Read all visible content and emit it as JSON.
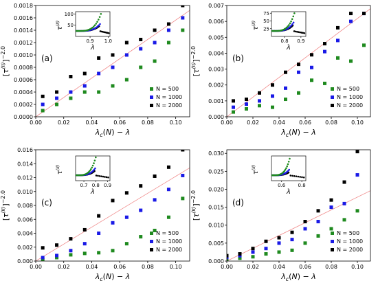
{
  "colors": {
    "n500": "#1f8a1f",
    "n1000": "#1a1ae6",
    "n2000": "#000000",
    "fit": "#f08a8a"
  },
  "chart_data": [
    {
      "type": "scatter",
      "panel_label": "(a)",
      "xlabel": "λc(N) − λ",
      "ylabel": "[τ(II)]−2.0",
      "xlim": [
        0,
        0.11
      ],
      "ylim": [
        0,
        0.0018
      ],
      "xticks": [
        0.0,
        0.02,
        0.04,
        0.06,
        0.08,
        0.1
      ],
      "xtick_labels": [
        "0.00",
        "0.02",
        "0.04",
        "0.06",
        "0.08",
        "0.10"
      ],
      "yticks": [
        0,
        0.0002,
        0.0004,
        0.0006,
        0.0008,
        0.001,
        0.0012,
        0.0014,
        0.0016,
        0.0018
      ],
      "ytick_labels": [
        "0.0000",
        "0.0002",
        "0.0004",
        "0.0006",
        "0.0008",
        "0.0010",
        "0.0012",
        "0.0014",
        "0.0016",
        "0.0018"
      ],
      "fit": [
        [
          0.0,
          0.0
        ],
        [
          0.11,
          0.00172
        ]
      ],
      "legend_position": "lower-right",
      "series": [
        {
          "name": "N = 500",
          "color": "n500",
          "points": [
            [
              0.005,
              0.0001
            ],
            [
              0.015,
              0.0002
            ],
            [
              0.025,
              0.0003
            ],
            [
              0.035,
              0.0004
            ],
            [
              0.045,
              0.0004
            ],
            [
              0.055,
              0.0005
            ],
            [
              0.065,
              0.0006
            ],
            [
              0.075,
              0.0008
            ],
            [
              0.085,
              0.0009
            ],
            [
              0.095,
              0.0012
            ],
            [
              0.105,
              0.0014
            ]
          ]
        },
        {
          "name": "N = 1000",
          "color": "n1000",
          "points": [
            [
              0.005,
              0.0002
            ],
            [
              0.015,
              0.0003
            ],
            [
              0.025,
              0.0004
            ],
            [
              0.035,
              0.0005
            ],
            [
              0.045,
              0.0007
            ],
            [
              0.055,
              0.0008
            ],
            [
              0.065,
              0.001
            ],
            [
              0.075,
              0.0011
            ],
            [
              0.085,
              0.0012
            ],
            [
              0.095,
              0.0014
            ],
            [
              0.105,
              0.0016
            ]
          ]
        },
        {
          "name": "N = 2000",
          "color": "n2000",
          "points": [
            [
              0.005,
              0.00033
            ],
            [
              0.015,
              0.0004
            ],
            [
              0.025,
              0.00065
            ],
            [
              0.035,
              0.0007
            ],
            [
              0.045,
              0.00095
            ],
            [
              0.055,
              0.001
            ],
            [
              0.065,
              0.0012
            ],
            [
              0.075,
              0.00125
            ],
            [
              0.085,
              0.0014
            ],
            [
              0.095,
              0.0015
            ],
            [
              0.105,
              0.0018
            ]
          ]
        }
      ],
      "inset": {
        "xlabel": "λ",
        "ylabel": "τ(II)",
        "xlim": [
          0.82,
          1.01
        ],
        "ylim": [
          0,
          110
        ],
        "xticks": [
          0.9,
          1.0
        ],
        "xtick_labels": [
          "0.9",
          "1.0"
        ],
        "yticks": [
          50,
          100
        ],
        "ytick_labels": [
          "50",
          "100"
        ],
        "peaks": [
          {
            "color": "n500",
            "xc": 0.96,
            "peak": 100
          },
          {
            "color": "n1000",
            "xc": 0.955,
            "peak": 55
          },
          {
            "color": "n2000",
            "xc": 0.95,
            "peak": 45
          }
        ]
      }
    },
    {
      "type": "scatter",
      "panel_label": "(b)",
      "xlabel": "λc(N) − λ",
      "ylabel": "[τ(II)]−2.0",
      "xlim": [
        0,
        0.11
      ],
      "ylim": [
        0,
        0.007
      ],
      "xticks": [
        0.0,
        0.02,
        0.04,
        0.06,
        0.08,
        0.1
      ],
      "xtick_labels": [
        "0.00",
        "0.02",
        "0.04",
        "0.06",
        "0.08",
        "0.10"
      ],
      "yticks": [
        0,
        0.001,
        0.002,
        0.003,
        0.004,
        0.005,
        0.006,
        0.007
      ],
      "ytick_labels": [
        "0.000",
        "0.001",
        "0.002",
        "0.003",
        "0.004",
        "0.005",
        "0.006",
        "0.007"
      ],
      "fit": [
        [
          0.0,
          0.0
        ],
        [
          0.11,
          0.0068
        ]
      ],
      "legend_position": "lower-right",
      "series": [
        {
          "name": "N = 500",
          "color": "n500",
          "points": [
            [
              0.005,
              0.0003
            ],
            [
              0.015,
              0.0005
            ],
            [
              0.025,
              0.0007
            ],
            [
              0.035,
              0.0006
            ],
            [
              0.045,
              0.0011
            ],
            [
              0.055,
              0.0015
            ],
            [
              0.065,
              0.0023
            ],
            [
              0.075,
              0.0021
            ],
            [
              0.085,
              0.0037
            ],
            [
              0.095,
              0.0035
            ],
            [
              0.105,
              0.0045
            ]
          ]
        },
        {
          "name": "N = 1000",
          "color": "n1000",
          "points": [
            [
              0.005,
              0.0006
            ],
            [
              0.015,
              0.0008
            ],
            [
              0.025,
              0.001
            ],
            [
              0.035,
              0.0013
            ],
            [
              0.045,
              0.0018
            ],
            [
              0.055,
              0.0028
            ],
            [
              0.065,
              0.0031
            ],
            [
              0.075,
              0.0041
            ],
            [
              0.085,
              0.0048
            ],
            [
              0.095,
              0.006
            ],
            [
              0.105,
              0.0065
            ]
          ]
        },
        {
          "name": "N = 2000",
          "color": "n2000",
          "points": [
            [
              0.005,
              0.001
            ],
            [
              0.015,
              0.0011
            ],
            [
              0.025,
              0.0015
            ],
            [
              0.035,
              0.002
            ],
            [
              0.045,
              0.0028
            ],
            [
              0.055,
              0.0033
            ],
            [
              0.065,
              0.0039
            ],
            [
              0.075,
              0.0046
            ],
            [
              0.085,
              0.0056
            ],
            [
              0.095,
              0.0065
            ],
            [
              0.105,
              0.0065
            ]
          ]
        }
      ],
      "inset": {
        "xlabel": "λ",
        "ylabel": "τ(II)",
        "xlim": [
          0.72,
          0.93
        ],
        "ylim": [
          0,
          80
        ],
        "xticks": [
          0.8,
          0.9
        ],
        "xtick_labels": [
          "0.8",
          "0.9"
        ],
        "yticks": [
          25,
          50,
          75
        ],
        "ytick_labels": [
          "25",
          "50",
          "75"
        ],
        "peaks": [
          {
            "color": "n500",
            "xc": 0.86,
            "peak": 75
          },
          {
            "color": "n1000",
            "xc": 0.855,
            "peak": 45
          },
          {
            "color": "n2000",
            "xc": 0.85,
            "peak": 35
          }
        ]
      }
    },
    {
      "type": "scatter",
      "panel_label": "(c)",
      "xlabel": "λc(N) − λ",
      "ylabel": "[τ(II)]−2.0",
      "xlim": [
        0,
        0.11
      ],
      "ylim": [
        0,
        0.016
      ],
      "xticks": [
        0.0,
        0.02,
        0.04,
        0.06,
        0.08,
        0.1
      ],
      "xtick_labels": [
        "0.00",
        "0.02",
        "0.04",
        "0.06",
        "0.08",
        "0.10"
      ],
      "yticks": [
        0,
        0.002,
        0.004,
        0.006,
        0.008,
        0.01,
        0.012,
        0.014,
        0.016
      ],
      "ytick_labels": [
        "0.000",
        "0.002",
        "0.004",
        "0.006",
        "0.008",
        "0.010",
        "0.012",
        "0.014",
        "0.016"
      ],
      "fit": [
        [
          0.0,
          0.0
        ],
        [
          0.11,
          0.0134
        ]
      ],
      "legend_position": "lower-right",
      "series": [
        {
          "name": "N = 500",
          "color": "n500",
          "points": [
            [
              0.005,
              0.0002
            ],
            [
              0.015,
              0.0005
            ],
            [
              0.025,
              0.0009
            ],
            [
              0.035,
              0.0011
            ],
            [
              0.045,
              0.0012
            ],
            [
              0.055,
              0.0015
            ],
            [
              0.065,
              0.0025
            ],
            [
              0.075,
              0.0035
            ],
            [
              0.085,
              0.0044
            ],
            [
              0.095,
              0.0063
            ],
            [
              0.105,
              0.009
            ]
          ]
        },
        {
          "name": "N = 1000",
          "color": "n1000",
          "points": [
            [
              0.005,
              0.0005
            ],
            [
              0.015,
              0.0008
            ],
            [
              0.025,
              0.0015
            ],
            [
              0.035,
              0.0025
            ],
            [
              0.045,
              0.004
            ],
            [
              0.055,
              0.0055
            ],
            [
              0.065,
              0.0063
            ],
            [
              0.075,
              0.0073
            ],
            [
              0.085,
              0.0088
            ],
            [
              0.095,
              0.0103
            ],
            [
              0.105,
              0.0123
            ]
          ]
        },
        {
          "name": "N = 2000",
          "color": "n2000",
          "points": [
            [
              0.005,
              0.0019
            ],
            [
              0.015,
              0.0023
            ],
            [
              0.025,
              0.0032
            ],
            [
              0.035,
              0.0045
            ],
            [
              0.045,
              0.0065
            ],
            [
              0.055,
              0.0087
            ],
            [
              0.065,
              0.0098
            ],
            [
              0.075,
              0.0108
            ],
            [
              0.085,
              0.0122
            ],
            [
              0.095,
              0.0135
            ],
            [
              0.105,
              0.016
            ]
          ]
        }
      ],
      "inset": {
        "xlabel": "λ",
        "ylabel": "τ(II)",
        "xlim": [
          0.63,
          0.92
        ],
        "ylim": [
          0,
          90
        ],
        "xticks": [
          0.7,
          0.8,
          0.9
        ],
        "xtick_labels": [
          "0.7",
          "0.8",
          "0.9"
        ],
        "yticks": [],
        "ytick_labels": [],
        "peaks": [
          {
            "color": "n500",
            "xc": 0.8,
            "peak": 85
          },
          {
            "color": "n1000",
            "xc": 0.795,
            "peak": 45
          },
          {
            "color": "n2000",
            "xc": 0.79,
            "peak": 35
          }
        ]
      }
    },
    {
      "type": "scatter",
      "panel_label": "(d)",
      "xlabel": "λc(N) − λ",
      "ylabel": "[τ(II)]−2.0",
      "xlim": [
        0,
        0.11
      ],
      "ylim": [
        0,
        0.031
      ],
      "xticks": [
        0.0,
        0.02,
        0.04,
        0.06,
        0.08,
        0.1
      ],
      "xtick_labels": [
        "0.00",
        "0.02",
        "0.04",
        "0.06",
        "0.08",
        "0.10"
      ],
      "yticks": [
        0,
        0.005,
        0.01,
        0.015,
        0.02,
        0.025,
        0.03
      ],
      "ytick_labels": [
        "0.000",
        "0.005",
        "0.010",
        "0.015",
        "0.020",
        "0.025",
        "0.030"
      ],
      "fit": [
        [
          0.0,
          0.0
        ],
        [
          0.11,
          0.0196
        ]
      ],
      "legend_position": "lower-right",
      "series": [
        {
          "name": "N = 500",
          "color": "n500",
          "points": [
            [
              0.0,
              0.0005
            ],
            [
              0.01,
              0.0008
            ],
            [
              0.02,
              0.0012
            ],
            [
              0.03,
              0.002
            ],
            [
              0.04,
              0.0025
            ],
            [
              0.05,
              0.003
            ],
            [
              0.06,
              0.005
            ],
            [
              0.07,
              0.007
            ],
            [
              0.08,
              0.009
            ],
            [
              0.09,
              0.0115
            ],
            [
              0.1,
              0.014
            ]
          ]
        },
        {
          "name": "N = 1000",
          "color": "n1000",
          "points": [
            [
              0.0,
              0.001
            ],
            [
              0.01,
              0.0015
            ],
            [
              0.02,
              0.0025
            ],
            [
              0.03,
              0.0035
            ],
            [
              0.04,
              0.005
            ],
            [
              0.05,
              0.006
            ],
            [
              0.06,
              0.009
            ],
            [
              0.07,
              0.011
            ],
            [
              0.08,
              0.015
            ],
            [
              0.09,
              0.016
            ],
            [
              0.1,
              0.024
            ]
          ]
        },
        {
          "name": "N = 2000",
          "color": "n2000",
          "points": [
            [
              0.0,
              0.0015
            ],
            [
              0.01,
              0.002
            ],
            [
              0.02,
              0.0035
            ],
            [
              0.03,
              0.0055
            ],
            [
              0.04,
              0.0065
            ],
            [
              0.05,
              0.008
            ],
            [
              0.06,
              0.011
            ],
            [
              0.07,
              0.014
            ],
            [
              0.08,
              0.017
            ],
            [
              0.09,
              0.022
            ],
            [
              0.1,
              0.0305
            ]
          ]
        }
      ],
      "inset": {
        "xlabel": "λ",
        "ylabel": "τ(II)",
        "xlim": [
          0.5,
          0.84
        ],
        "ylim": [
          0,
          90
        ],
        "xticks": [
          0.6,
          0.8
        ],
        "xtick_labels": [
          "0.6",
          "0.8"
        ],
        "yticks": [],
        "ytick_labels": [],
        "peaks": [
          {
            "color": "n500",
            "xc": 0.68,
            "peak": 80
          },
          {
            "color": "n1000",
            "xc": 0.675,
            "peak": 40
          },
          {
            "color": "n2000",
            "xc": 0.67,
            "peak": 30
          }
        ]
      }
    }
  ]
}
